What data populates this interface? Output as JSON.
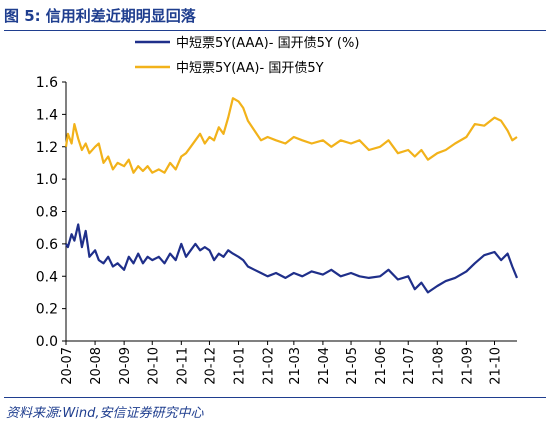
{
  "figure": {
    "number": "图 5:",
    "title": "信用利差近期明显回落"
  },
  "source": "资料来源:Wind,安信证券研究中心",
  "colors": {
    "aaa": "#1f2f8a",
    "aa": "#f2b21a",
    "axis": "#000000",
    "title": "#1f3e8f"
  },
  "chart_data": {
    "type": "line",
    "title": "",
    "xlabel": "",
    "ylabel": "",
    "ylim": [
      0,
      1.6
    ],
    "yticks": [
      "0.0",
      "0.2",
      "0.4",
      "0.6",
      "0.8",
      "1.0",
      "1.2",
      "1.4",
      "1.6"
    ],
    "xlim": [
      "2020-07-01",
      "2021-10-25"
    ],
    "xtick_labels": [
      "20-07",
      "20-08",
      "20-09",
      "20-10",
      "20-11",
      "20-12",
      "21-01",
      "21-02",
      "21-03",
      "21-04",
      "21-05",
      "21-06",
      "21-07",
      "21-08",
      "21-09",
      "21-10"
    ],
    "xtick_dates": [
      "2020-07-01",
      "2020-08-01",
      "2020-09-01",
      "2020-10-01",
      "2020-11-01",
      "2020-12-01",
      "2021-01-01",
      "2021-02-01",
      "2021-03-01",
      "2021-04-01",
      "2021-05-01",
      "2021-06-01",
      "2021-07-01",
      "2021-08-01",
      "2021-09-01",
      "2021-10-01"
    ],
    "grid": false,
    "legend_position": "top-center",
    "series": [
      {
        "name": "中短票5Y(AAA)- 国开债5Y (%)",
        "x": [
          "2020-07-01",
          "2020-07-03",
          "2020-07-07",
          "2020-07-10",
          "2020-07-14",
          "2020-07-18",
          "2020-07-22",
          "2020-07-26",
          "2020-08-01",
          "2020-08-05",
          "2020-08-10",
          "2020-08-15",
          "2020-08-20",
          "2020-08-25",
          "2020-09-01",
          "2020-09-06",
          "2020-09-11",
          "2020-09-16",
          "2020-09-21",
          "2020-09-26",
          "2020-10-01",
          "2020-10-08",
          "2020-10-14",
          "2020-10-20",
          "2020-10-26",
          "2020-11-01",
          "2020-11-06",
          "2020-11-11",
          "2020-11-16",
          "2020-11-21",
          "2020-11-26",
          "2020-12-01",
          "2020-12-06",
          "2020-12-11",
          "2020-12-16",
          "2020-12-21",
          "2020-12-26",
          "2021-01-01",
          "2021-01-06",
          "2021-01-11",
          "2021-01-18",
          "2021-01-25",
          "2021-02-01",
          "2021-02-10",
          "2021-02-20",
          "2021-03-01",
          "2021-03-10",
          "2021-03-20",
          "2021-04-01",
          "2021-04-10",
          "2021-04-20",
          "2021-05-01",
          "2021-05-10",
          "2021-05-20",
          "2021-06-01",
          "2021-06-10",
          "2021-06-20",
          "2021-07-01",
          "2021-07-08",
          "2021-07-15",
          "2021-07-22",
          "2021-08-01",
          "2021-08-10",
          "2021-08-20",
          "2021-09-01",
          "2021-09-10",
          "2021-09-20",
          "2021-10-01",
          "2021-10-08",
          "2021-10-15",
          "2021-10-20",
          "2021-10-25"
        ],
        "values": [
          0.6,
          0.58,
          0.66,
          0.62,
          0.72,
          0.58,
          0.68,
          0.52,
          0.56,
          0.5,
          0.48,
          0.52,
          0.46,
          0.48,
          0.44,
          0.52,
          0.48,
          0.54,
          0.48,
          0.52,
          0.5,
          0.52,
          0.48,
          0.54,
          0.5,
          0.6,
          0.52,
          0.56,
          0.6,
          0.56,
          0.58,
          0.56,
          0.5,
          0.54,
          0.52,
          0.56,
          0.54,
          0.52,
          0.5,
          0.46,
          0.44,
          0.42,
          0.4,
          0.42,
          0.39,
          0.42,
          0.4,
          0.43,
          0.41,
          0.44,
          0.4,
          0.42,
          0.4,
          0.39,
          0.4,
          0.44,
          0.38,
          0.4,
          0.32,
          0.36,
          0.3,
          0.34,
          0.37,
          0.39,
          0.43,
          0.48,
          0.53,
          0.55,
          0.5,
          0.54,
          0.46,
          0.39
        ]
      },
      {
        "name": "中短票5Y(AA)- 国开债5Y",
        "x": [
          "2020-07-01",
          "2020-07-03",
          "2020-07-07",
          "2020-07-10",
          "2020-07-14",
          "2020-07-18",
          "2020-07-22",
          "2020-07-26",
          "2020-08-01",
          "2020-08-05",
          "2020-08-10",
          "2020-08-15",
          "2020-08-20",
          "2020-08-25",
          "2020-09-01",
          "2020-09-06",
          "2020-09-11",
          "2020-09-16",
          "2020-09-21",
          "2020-09-26",
          "2020-10-01",
          "2020-10-08",
          "2020-10-14",
          "2020-10-20",
          "2020-10-26",
          "2020-11-01",
          "2020-11-06",
          "2020-11-11",
          "2020-11-16",
          "2020-11-21",
          "2020-11-26",
          "2020-12-01",
          "2020-12-06",
          "2020-12-11",
          "2020-12-16",
          "2020-12-21",
          "2020-12-26",
          "2021-01-01",
          "2021-01-06",
          "2021-01-11",
          "2021-01-18",
          "2021-01-25",
          "2021-02-01",
          "2021-02-10",
          "2021-02-20",
          "2021-03-01",
          "2021-03-10",
          "2021-03-20",
          "2021-04-01",
          "2021-04-10",
          "2021-04-20",
          "2021-05-01",
          "2021-05-10",
          "2021-05-20",
          "2021-06-01",
          "2021-06-10",
          "2021-06-20",
          "2021-07-01",
          "2021-07-08",
          "2021-07-15",
          "2021-07-22",
          "2021-08-01",
          "2021-08-10",
          "2021-08-20",
          "2021-09-01",
          "2021-09-10",
          "2021-09-20",
          "2021-10-01",
          "2021-10-08",
          "2021-10-15",
          "2021-10-20",
          "2021-10-25"
        ],
        "values": [
          1.2,
          1.28,
          1.22,
          1.34,
          1.25,
          1.18,
          1.22,
          1.16,
          1.2,
          1.22,
          1.1,
          1.14,
          1.06,
          1.1,
          1.08,
          1.12,
          1.04,
          1.08,
          1.05,
          1.08,
          1.04,
          1.06,
          1.04,
          1.1,
          1.06,
          1.14,
          1.16,
          1.2,
          1.24,
          1.28,
          1.22,
          1.26,
          1.24,
          1.32,
          1.28,
          1.38,
          1.5,
          1.48,
          1.44,
          1.36,
          1.3,
          1.24,
          1.26,
          1.24,
          1.22,
          1.26,
          1.24,
          1.22,
          1.24,
          1.2,
          1.24,
          1.22,
          1.24,
          1.18,
          1.2,
          1.24,
          1.16,
          1.18,
          1.14,
          1.18,
          1.12,
          1.16,
          1.18,
          1.22,
          1.26,
          1.34,
          1.33,
          1.38,
          1.36,
          1.3,
          1.24,
          1.26
        ]
      }
    ]
  }
}
